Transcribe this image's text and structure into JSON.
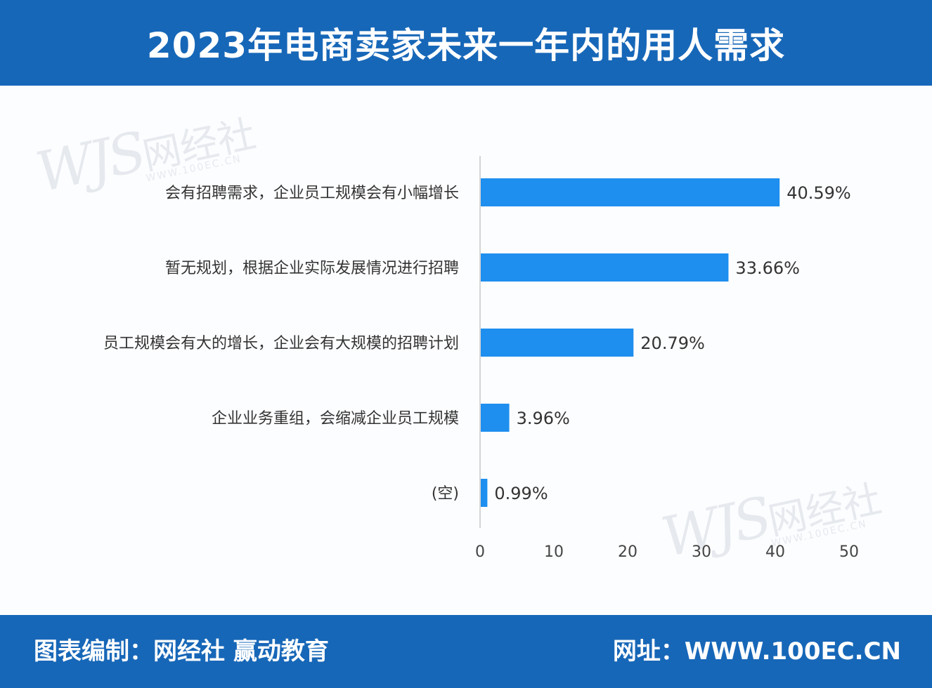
{
  "header": {
    "title": "2023年电商卖家未来一年内的用人需求"
  },
  "footer": {
    "left": "图表编制：网经社 赢动教育",
    "right": "网址：WWW.100EC.CN"
  },
  "watermark": {
    "logo": "WJS",
    "name": "网经社",
    "url": "WWW.100EC.CN"
  },
  "colors": {
    "header": "#1767b8",
    "bar": "#1e8fef",
    "axis": "#c8c8c8"
  },
  "chart_data": {
    "type": "bar",
    "orientation": "horizontal",
    "title": "2023年电商卖家未来一年内的用人需求",
    "categories": [
      "会有招聘需求，企业员工规模会有小幅增长",
      "暂无规划，根据企业实际发展情况进行招聘",
      "员工规模会有大的增长，企业会有大规模的招聘计划",
      "企业业务重组，会缩减企业员工规模",
      "(空)"
    ],
    "values": [
      40.59,
      33.66,
      20.79,
      3.96,
      0.99
    ],
    "value_labels": [
      "40.59%",
      "33.66%",
      "20.79%",
      "3.96%",
      "0.99%"
    ],
    "xlim": [
      0,
      50
    ],
    "xticks": [
      0,
      10,
      20,
      30,
      40,
      50
    ],
    "grid": false,
    "legend": "none"
  }
}
